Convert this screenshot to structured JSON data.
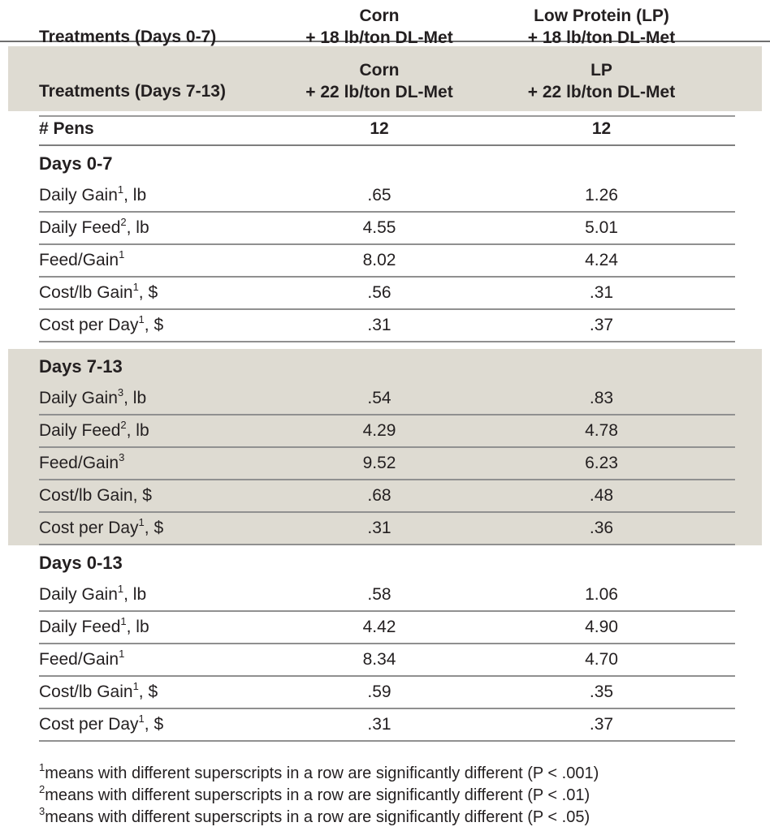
{
  "colors": {
    "shade_background": "#dedbd2",
    "rule_gray": "#909090",
    "text": "#231f20"
  },
  "table": {
    "header_row_1": {
      "label": "Treatments (Days 0-7)",
      "col1_line1": "Corn",
      "col1_line2": "+ 18 lb/ton DL-Met",
      "col2_line1": "Low Protein (LP)",
      "col2_line2": "+ 18 lb/ton DL-Met"
    },
    "header_row_2": {
      "label": "Treatments (Days 7-13)",
      "col1_line1": "Corn",
      "col1_line2": "+ 22 lb/ton DL-Met",
      "col2_line1": "LP",
      "col2_line2": "+ 22 lb/ton DL-Met"
    },
    "pens_row": {
      "label": "# Pens",
      "values": [
        "12",
        "12"
      ]
    },
    "sections": [
      {
        "title": "Days 0-7",
        "shaded": false,
        "rows": [
          {
            "label": "Daily Gain",
            "sup": "1",
            "suffix": ", lb",
            "values": [
              ".65",
              "1.26"
            ]
          },
          {
            "label": "Daily Feed",
            "sup": "2",
            "suffix": ", lb",
            "values": [
              "4.55",
              "5.01"
            ]
          },
          {
            "label": "Feed/Gain",
            "sup": "1",
            "suffix": "",
            "values": [
              "8.02",
              "4.24"
            ]
          },
          {
            "label": "Cost/lb Gain",
            "sup": "1",
            "suffix": ", $",
            "values": [
              ".56",
              ".31"
            ]
          },
          {
            "label": "Cost per Day",
            "sup": "1",
            "suffix": ", $",
            "values": [
              ".31",
              ".37"
            ]
          }
        ]
      },
      {
        "title": "Days 7-13",
        "shaded": true,
        "rows": [
          {
            "label": "Daily Gain",
            "sup": "3",
            "suffix": ", lb",
            "values": [
              ".54",
              ".83"
            ]
          },
          {
            "label": "Daily Feed",
            "sup": "2",
            "suffix": ", lb",
            "values": [
              "4.29",
              "4.78"
            ]
          },
          {
            "label": "Feed/Gain",
            "sup": "3",
            "suffix": "",
            "values": [
              "9.52",
              "6.23"
            ]
          },
          {
            "label": "Cost/lb Gain",
            "sup": "",
            "suffix": ", $",
            "values": [
              ".68",
              ".48"
            ]
          },
          {
            "label": "Cost per Day",
            "sup": "1",
            "suffix": ", $",
            "values": [
              ".31",
              ".36"
            ]
          }
        ]
      },
      {
        "title": "Days 0-13",
        "shaded": false,
        "rows": [
          {
            "label": "Daily Gain",
            "sup": "1",
            "suffix": ", lb",
            "values": [
              ".58",
              "1.06"
            ]
          },
          {
            "label": "Daily Feed",
            "sup": "1",
            "suffix": ", lb",
            "values": [
              "4.42",
              "4.90"
            ]
          },
          {
            "label": "Feed/Gain",
            "sup": "1",
            "suffix": "",
            "values": [
              "8.34",
              "4.70"
            ]
          },
          {
            "label": "Cost/lb Gain",
            "sup": "1",
            "suffix": ", $",
            "values": [
              ".59",
              ".35"
            ]
          },
          {
            "label": "Cost per Day",
            "sup": "1",
            "suffix": ", $",
            "values": [
              ".31",
              ".37"
            ]
          }
        ]
      }
    ],
    "footnotes": [
      {
        "sup": "1",
        "text": "means with different superscripts in a row are significantly different (P < .001)"
      },
      {
        "sup": "2",
        "text": "means with different superscripts in a row are significantly different (P < .01)"
      },
      {
        "sup": "3",
        "text": "means with different superscripts in a row are significantly different (P < .05)"
      }
    ]
  }
}
